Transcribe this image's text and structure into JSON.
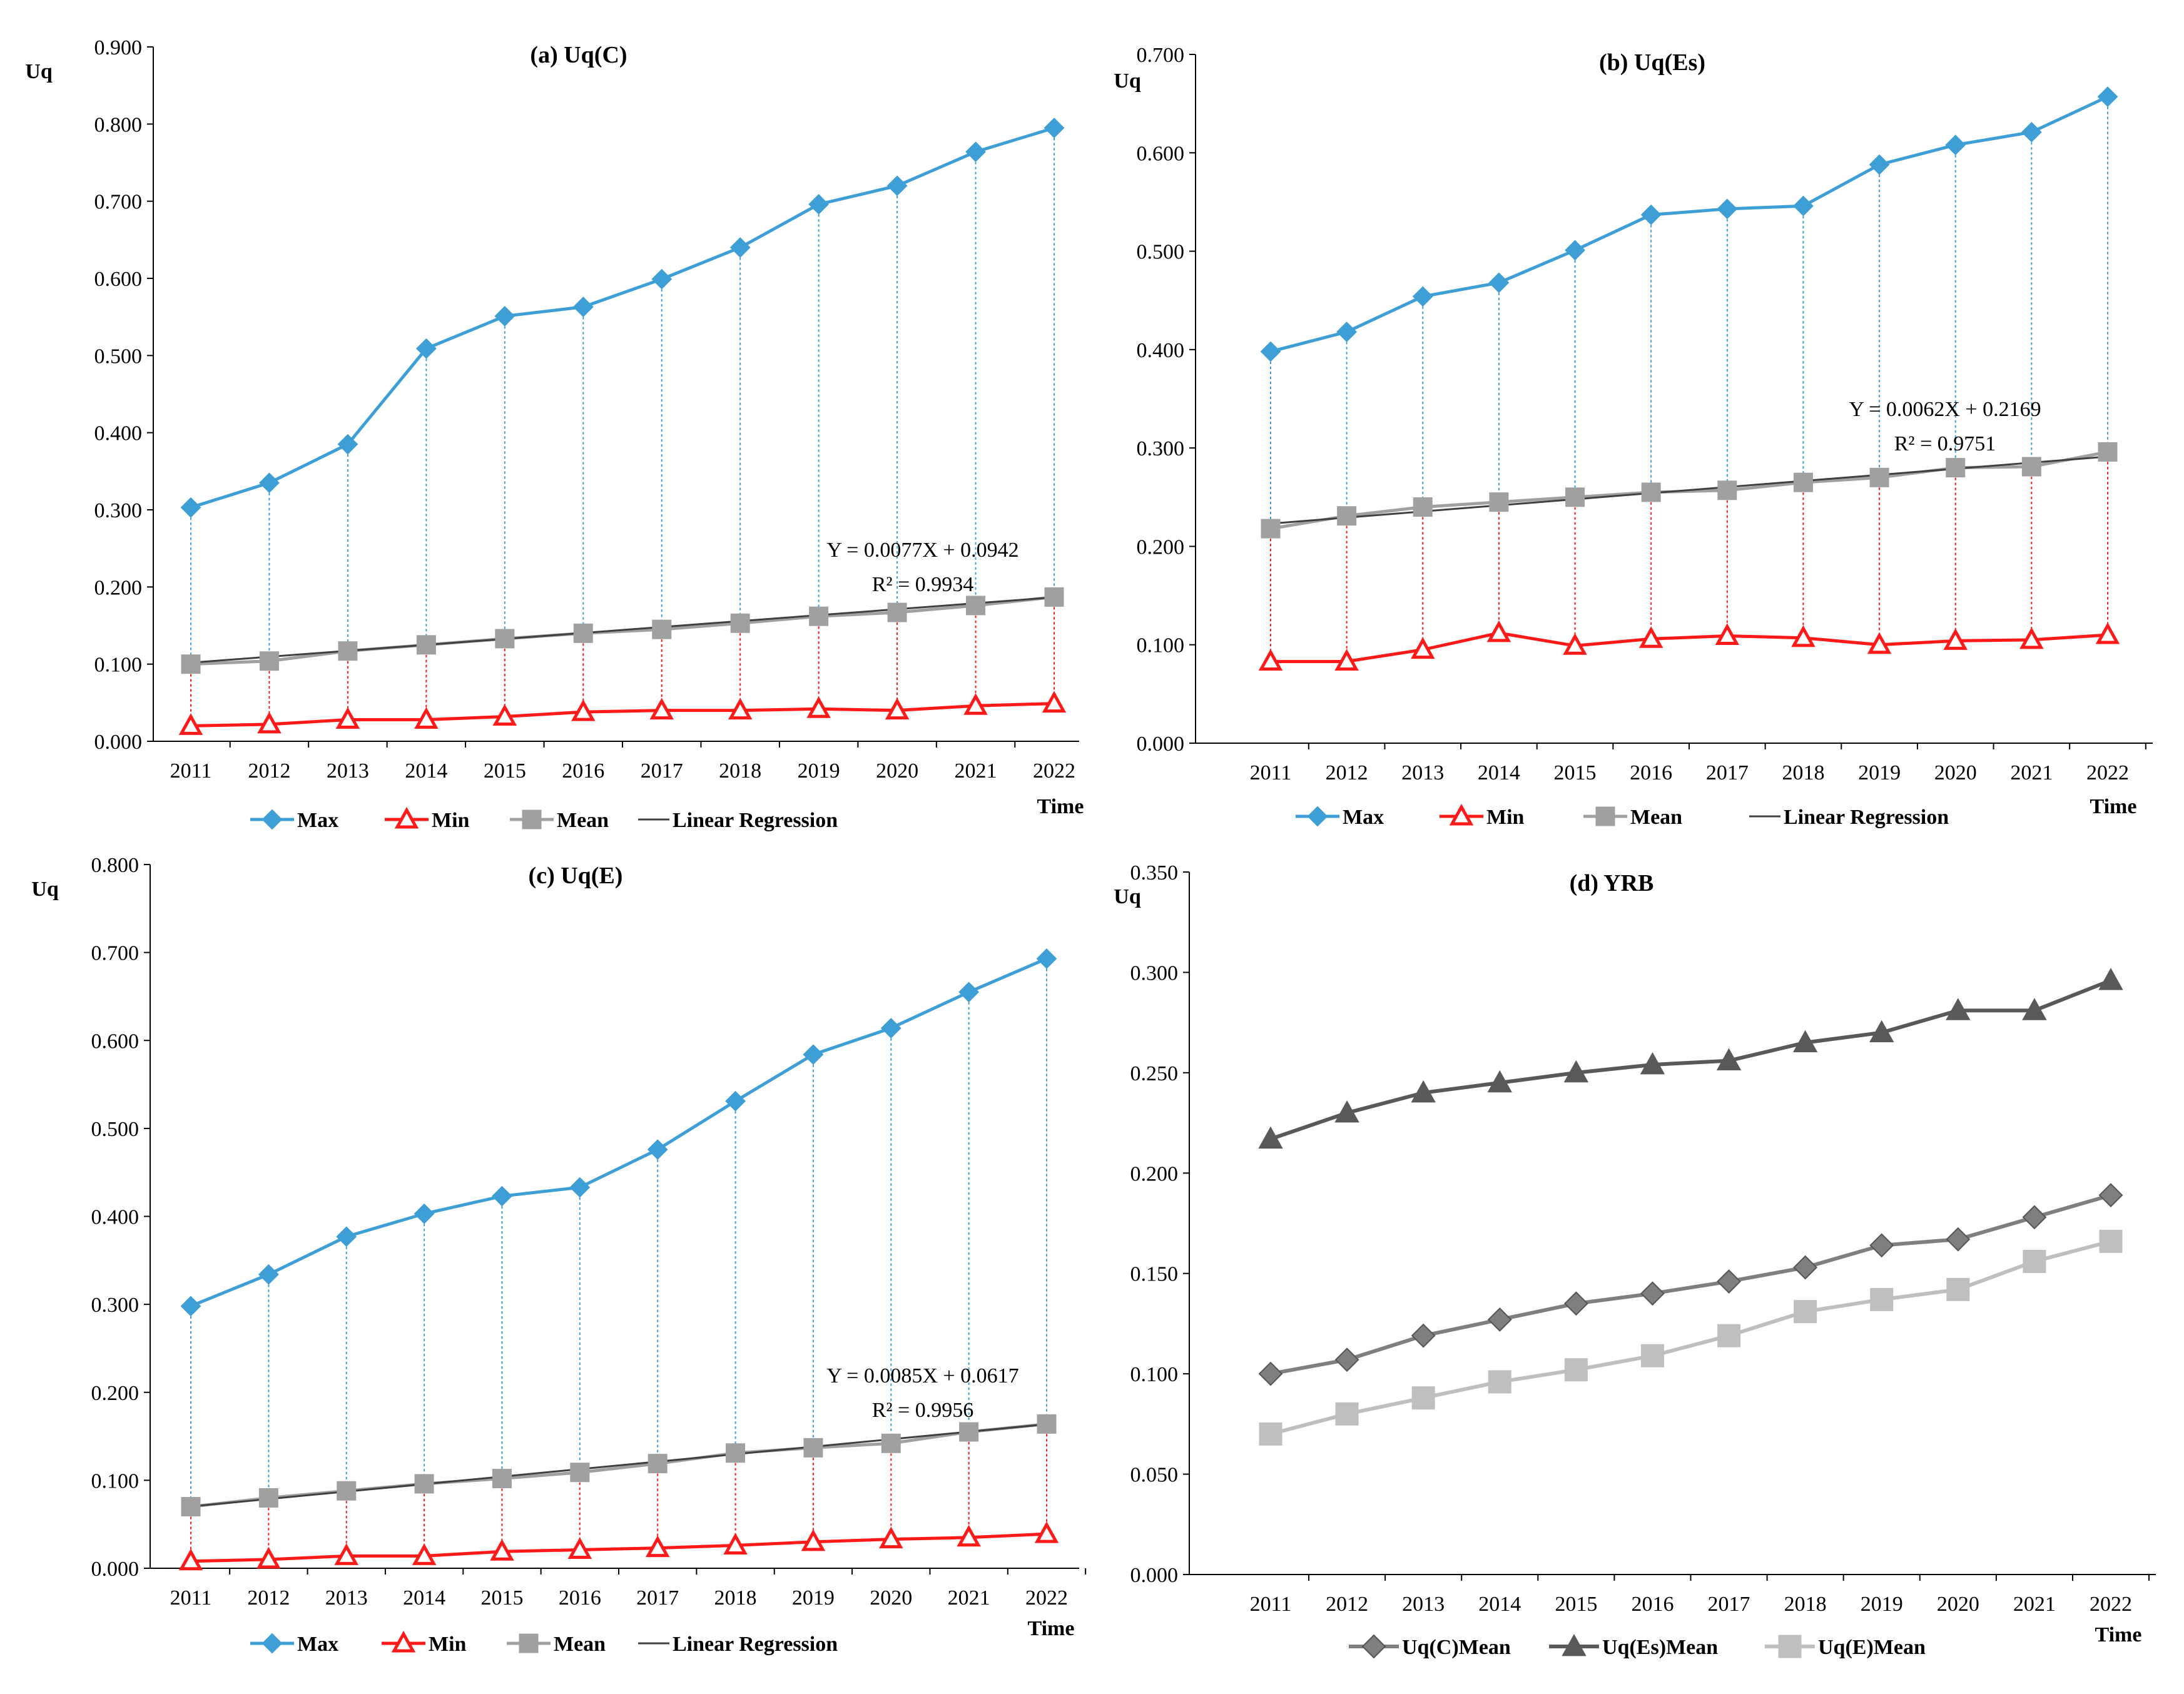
{
  "chart_data": [
    {
      "type": "line",
      "title": "(a) Uq(C)",
      "ylabel": "Uq",
      "xlabel": "Time",
      "ylim": [
        0,
        0.9
      ],
      "yticks": [
        "0.000",
        "0.100",
        "0.200",
        "0.300",
        "0.400",
        "0.500",
        "0.600",
        "0.700",
        "0.800",
        "0.900"
      ],
      "categories": [
        "2011",
        "2012",
        "2013",
        "2014",
        "2015",
        "2016",
        "2017",
        "2018",
        "2019",
        "2020",
        "2021",
        "2022"
      ],
      "series": [
        {
          "name": "Max",
          "color": "#3d9fd6",
          "marker": "diamond",
          "values": [
            0.303,
            0.335,
            0.385,
            0.509,
            0.551,
            0.563,
            0.599,
            0.64,
            0.696,
            0.72,
            0.764,
            0.795
          ]
        },
        {
          "name": "Min",
          "color": "#ff1a1a",
          "marker": "triangle",
          "values": [
            0.02,
            0.022,
            0.028,
            0.028,
            0.032,
            0.038,
            0.04,
            0.04,
            0.042,
            0.04,
            0.046,
            0.049
          ]
        },
        {
          "name": "Mean",
          "color": "#a0a0a0",
          "marker": "square",
          "values": [
            0.1,
            0.104,
            0.117,
            0.125,
            0.133,
            0.14,
            0.145,
            0.153,
            0.162,
            0.167,
            0.176,
            0.187
          ]
        }
      ],
      "regression": {
        "name": "Linear Regression",
        "slope": 0.0077,
        "intercept": 0.0942
      },
      "equation": "Y = 0.0077X + 0.0942",
      "r2": "R² = 0.9934",
      "legend": [
        "Max",
        "Min",
        "Mean",
        "Linear Regression"
      ]
    },
    {
      "type": "line",
      "title": "(b) Uq(Es)",
      "ylabel": "Uq",
      "xlabel": "Time",
      "ylim": [
        0,
        0.7
      ],
      "yticks": [
        "0.000",
        "0.100",
        "0.200",
        "0.300",
        "0.400",
        "0.500",
        "0.600",
        "0.700"
      ],
      "categories": [
        "2011",
        "2012",
        "2013",
        "2014",
        "2015",
        "2016",
        "2017",
        "2018",
        "2019",
        "2020",
        "2021",
        "2022"
      ],
      "series": [
        {
          "name": "Max",
          "color": "#3d9fd6",
          "marker": "diamond",
          "values": [
            0.398,
            0.418,
            0.454,
            0.468,
            0.501,
            0.537,
            0.543,
            0.546,
            0.588,
            0.608,
            0.621,
            0.657
          ]
        },
        {
          "name": "Min",
          "color": "#ff1a1a",
          "marker": "triangle",
          "values": [
            0.083,
            0.083,
            0.095,
            0.112,
            0.099,
            0.106,
            0.109,
            0.107,
            0.1,
            0.104,
            0.105,
            0.11
          ]
        },
        {
          "name": "Mean",
          "color": "#a0a0a0",
          "marker": "square",
          "values": [
            0.218,
            0.231,
            0.24,
            0.245,
            0.25,
            0.255,
            0.257,
            0.265,
            0.27,
            0.28,
            0.281,
            0.296
          ]
        }
      ],
      "regression": {
        "name": "Linear Regression",
        "slope": 0.0062,
        "intercept": 0.2169
      },
      "equation": "Y = 0.0062X + 0.2169",
      "r2": "R² = 0.9751",
      "legend": [
        "Max",
        "Min",
        "Mean",
        "Linear Regression"
      ]
    },
    {
      "type": "line",
      "title": "(c) Uq(E)",
      "ylabel": "Uq",
      "xlabel": "Time",
      "ylim": [
        0,
        0.8
      ],
      "yticks": [
        "0.000",
        "0.100",
        "0.200",
        "0.300",
        "0.400",
        "0.500",
        "0.600",
        "0.700",
        "0.800"
      ],
      "categories": [
        "2011",
        "2012",
        "2013",
        "2014",
        "2015",
        "2016",
        "2017",
        "2018",
        "2019",
        "2020",
        "2021",
        "2022"
      ],
      "series": [
        {
          "name": "Max",
          "color": "#3d9fd6",
          "marker": "diamond",
          "values": [
            0.298,
            0.334,
            0.377,
            0.403,
            0.423,
            0.433,
            0.476,
            0.531,
            0.584,
            0.614,
            0.655,
            0.693
          ]
        },
        {
          "name": "Min",
          "color": "#ff1a1a",
          "marker": "triangle",
          "values": [
            0.008,
            0.01,
            0.014,
            0.014,
            0.019,
            0.021,
            0.023,
            0.026,
            0.03,
            0.033,
            0.035,
            0.039
          ]
        },
        {
          "name": "Mean",
          "color": "#a0a0a0",
          "marker": "square",
          "values": [
            0.07,
            0.08,
            0.088,
            0.096,
            0.102,
            0.109,
            0.119,
            0.131,
            0.137,
            0.142,
            0.155,
            0.164
          ]
        }
      ],
      "regression": {
        "name": "Linear Regression",
        "slope": 0.0085,
        "intercept": 0.0617
      },
      "equation": "Y = 0.0085X + 0.0617",
      "r2": "R² = 0.9956",
      "legend": [
        "Max",
        "Min",
        "Mean",
        "Linear Regression"
      ]
    },
    {
      "type": "line",
      "title": "(d) YRB",
      "ylabel": "Uq",
      "xlabel": "Time",
      "ylim": [
        0,
        0.35
      ],
      "yticks": [
        "0.000",
        "0.050",
        "0.100",
        "0.150",
        "0.200",
        "0.250",
        "0.300",
        "0.350"
      ],
      "categories": [
        "2011",
        "2012",
        "2013",
        "2014",
        "2015",
        "2016",
        "2017",
        "2018",
        "2019",
        "2020",
        "2021",
        "2022"
      ],
      "series": [
        {
          "name": "Uq(C)Mean",
          "color": "#7f7f7f",
          "marker": "diamond",
          "values": [
            0.1,
            0.107,
            0.119,
            0.127,
            0.135,
            0.14,
            0.146,
            0.153,
            0.164,
            0.167,
            0.178,
            0.189
          ]
        },
        {
          "name": "Uq(Es)Mean",
          "color": "#595959",
          "marker": "triangle",
          "values": [
            0.217,
            0.23,
            0.24,
            0.245,
            0.25,
            0.254,
            0.256,
            0.265,
            0.27,
            0.281,
            0.281,
            0.296
          ]
        },
        {
          "name": "Uq(E)Mean",
          "color": "#bfbfbf",
          "marker": "square",
          "values": [
            0.07,
            0.08,
            0.088,
            0.096,
            0.102,
            0.109,
            0.119,
            0.131,
            0.137,
            0.142,
            0.156,
            0.166
          ]
        }
      ],
      "legend": [
        "Uq(C)Mean",
        "Uq(Es)Mean",
        "Uq(E)Mean"
      ]
    }
  ]
}
